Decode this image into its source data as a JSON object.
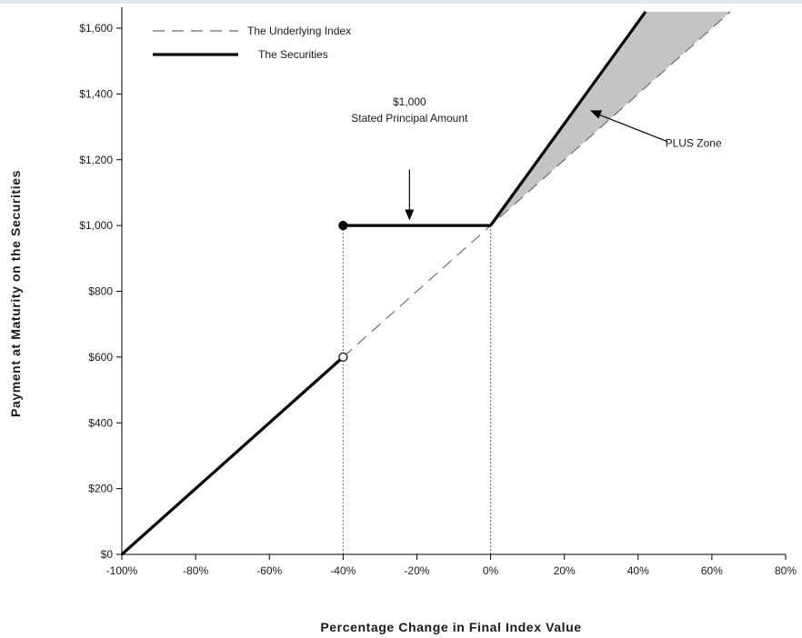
{
  "chart_data": {
    "type": "line",
    "title": "",
    "xlabel": "Percentage Change in Final Index Value",
    "ylabel": "Payment at Maturity on the Securities",
    "xlim": [
      -100,
      80
    ],
    "ylim": [
      0,
      1600
    ],
    "x_ticks": [
      -100,
      -80,
      -60,
      -40,
      -20,
      0,
      20,
      40,
      60,
      80
    ],
    "x_tick_labels": [
      "-100%",
      "-80%",
      "-60%",
      "-40%",
      "-20%",
      "0%",
      "20%",
      "40%",
      "60%",
      "80%"
    ],
    "y_ticks": [
      0,
      200,
      400,
      600,
      800,
      1000,
      1200,
      1400,
      1600
    ],
    "y_tick_labels": [
      "$0",
      "$200",
      "$400",
      "$600",
      "$800",
      "$1,000",
      "$1,200",
      "$1,400",
      "$1,600"
    ],
    "grid": false,
    "legend_position": "top-left",
    "series": [
      {
        "name": "The Underlying Index",
        "style": "dashed",
        "color": "#6e6e6e",
        "points": [
          [
            -40,
            600
          ],
          [
            65,
            1650
          ]
        ]
      },
      {
        "name": "The Securities",
        "style": "solid",
        "color": "#000000",
        "segments": [
          [
            [
              -100,
              0
            ],
            [
              -40,
              600
            ]
          ],
          [
            [
              -40,
              1000
            ],
            [
              0,
              1000
            ],
            [
              42,
              1650
            ]
          ]
        ]
      }
    ],
    "markers": [
      {
        "x": -40,
        "y": 1000,
        "fill": "filled"
      },
      {
        "x": -40,
        "y": 600,
        "fill": "open"
      }
    ],
    "reference_lines": [
      {
        "x": -40,
        "y_from": 0,
        "y_to": 1000
      },
      {
        "x": 0,
        "y_from": 0,
        "y_to": 1000
      }
    ],
    "shaded_region": {
      "color": "#c4c4c4",
      "polygon": [
        [
          0,
          1000
        ],
        [
          42,
          1650
        ],
        [
          65,
          1650
        ]
      ]
    },
    "annotations": [
      {
        "lines": [
          "$1,000",
          "Stated Principal Amount"
        ],
        "text_at": [
          -22,
          1380
        ],
        "arrow_from": [
          -22,
          1170
        ],
        "arrow_to": [
          -22,
          1010
        ]
      },
      {
        "lines": [
          "PLUS Zone"
        ],
        "text_at": [
          55,
          1250
        ],
        "arrow_from": [
          46,
          1255
        ],
        "arrow_to": [
          27,
          1350
        ]
      }
    ]
  }
}
